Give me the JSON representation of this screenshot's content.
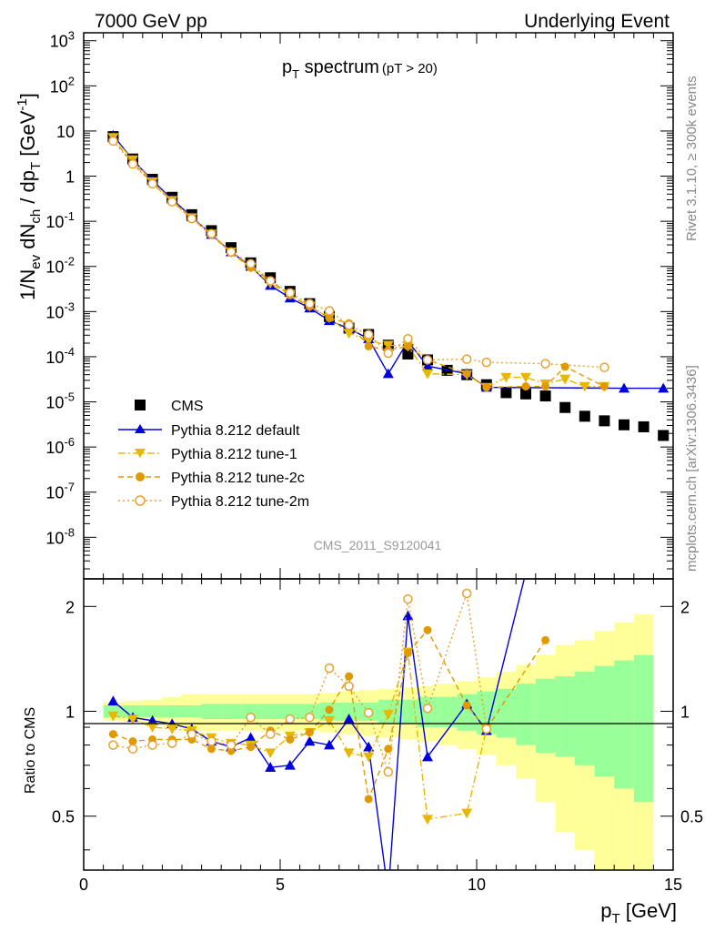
{
  "header": {
    "left": "7000 GeV pp",
    "right": "Underlying Event"
  },
  "side_text": {
    "top": "Rivet 3.1.10, ≥ 300k events",
    "bottom": "mcplots.cern.ch [arXiv:1306.3436]"
  },
  "chart_data": {
    "type": "scatter",
    "title_main": "p",
    "title_sub": "T",
    "title_rest": " spectrum",
    "title_cut": "(pT > 20)",
    "analysis_id": "CMS_2011_S9120041",
    "xlabel_main": "p",
    "xlabel_sub": "T",
    "xlabel_unit": " [GeV]",
    "ylabel": "1/N_ev dN_ch / dp_T [GeV^-1]",
    "ylabel_parts": {
      "a": "1/N",
      "a_sub": "ev",
      "b": " dN",
      "b_sub": "ch",
      "c": " / dp",
      "c_sub": "T",
      "d": " [GeV",
      "d_sup": "-1",
      "e": "]"
    },
    "ratio_ylabel": "Ratio to CMS",
    "x_ticks": [
      "0",
      "5",
      "10",
      "15"
    ],
    "y_ticks": [
      "10^-8",
      "10^-7",
      "10^-6",
      "10^-5",
      "10^-4",
      "10^-3",
      "10^-2",
      "10^-1",
      "1",
      "10",
      "10^2",
      "10^3"
    ],
    "ratio_ticks": [
      "0.5",
      "1",
      "2"
    ],
    "xlim": [
      0,
      15
    ],
    "ylim": [
      1.2e-09,
      1500
    ],
    "ratio_ylim": [
      0.35,
      2.4
    ],
    "log_y": true,
    "legend_position": "lower-left",
    "x": [
      0.75,
      1.25,
      1.75,
      2.25,
      2.75,
      3.25,
      3.75,
      4.25,
      4.75,
      5.25,
      5.75,
      6.25,
      6.75,
      7.25,
      7.75,
      8.25,
      8.75,
      9.25,
      9.75,
      10.25,
      10.75,
      11.25,
      11.75,
      12.25,
      12.75,
      13.25,
      13.75,
      14.25,
      14.75
    ],
    "series": [
      {
        "name": "CMS",
        "color": "#000000",
        "marker": "square",
        "values": [
          7.5,
          2.4,
          0.85,
          0.34,
          0.14,
          0.062,
          0.026,
          0.012,
          0.0056,
          0.0028,
          0.0015,
          0.00078,
          0.00043,
          0.00031,
          0.00018,
          0.000115,
          8.5e-05,
          5e-05,
          4e-05,
          2.4e-05,
          1.6e-05,
          1.5e-05,
          1.35e-05,
          7.5e-06,
          4.8e-06,
          3.8e-06,
          3.1e-06,
          2.8e-06,
          1.8e-06
        ]
      },
      {
        "name": "Pythia 8.212 default",
        "color": "#0000dd",
        "marker": "triangle-up",
        "line": "solid",
        "values": [
          8.0,
          2.3,
          0.8,
          0.31,
          0.125,
          0.051,
          0.021,
          0.01,
          0.0038,
          0.002,
          0.0012,
          0.00063,
          0.00042,
          0.00025,
          4.2e-05,
          0.00022,
          6.2e-05,
          null,
          4.2e-05,
          2.1e-05,
          null,
          null,
          null,
          null,
          null,
          null,
          2e-05,
          null,
          2e-05
        ]
      },
      {
        "name": "Pythia 8.212 tune-1",
        "color": "#e8b800",
        "marker": "triangle-down",
        "line": "dashdot",
        "values": [
          7.2,
          2.3,
          0.75,
          0.29,
          0.12,
          0.052,
          0.021,
          0.0095,
          0.0042,
          0.0024,
          0.0013,
          0.00073,
          0.00033,
          0.00023,
          0.00018,
          0.00017,
          4.2e-05,
          null,
          4e-05,
          2.1e-05,
          3.5e-05,
          3.5e-05,
          2.5e-05,
          3.2e-05,
          2.2e-05,
          2.2e-05,
          null,
          null,
          null
        ]
      },
      {
        "name": "Pythia 8.212 tune-2c",
        "color": "#e09a00",
        "marker": "circle",
        "line": "dashed",
        "values": [
          6.4,
          2.0,
          0.7,
          0.28,
          0.115,
          0.05,
          0.02,
          0.0094,
          0.0049,
          0.0023,
          0.0013,
          0.00072,
          0.00055,
          0.00017,
          0.00014,
          0.00017,
          8.5e-05,
          null,
          4.2e-05,
          2.1e-05,
          null,
          2.2e-05,
          2.2e-05,
          6e-05,
          null,
          2.2e-05,
          null,
          null,
          null
        ]
      },
      {
        "name": "Pythia 8.212 tune-2m",
        "color": "#e8a030",
        "marker": "circle-open",
        "line": "dotted",
        "values": [
          6.0,
          1.85,
          0.68,
          0.27,
          0.115,
          0.053,
          0.021,
          0.0115,
          0.0048,
          0.0026,
          0.0015,
          0.00104,
          0.0005,
          0.00031,
          0.00012,
          0.00025,
          8.5e-05,
          null,
          8.8e-05,
          7.5e-05,
          null,
          null,
          7e-05,
          null,
          null,
          5.8e-05,
          null,
          null,
          null
        ]
      }
    ],
    "ratio": {
      "default": [
        1.07,
        0.96,
        0.94,
        0.92,
        0.89,
        0.82,
        0.79,
        0.84,
        0.69,
        0.7,
        0.82,
        0.8,
        0.95,
        0.79,
        0.3,
        1.88,
        0.74,
        null,
        1.05,
        0.88,
        null,
        2.5
      ],
      "tune1": [
        0.97,
        0.95,
        0.9,
        0.89,
        0.88,
        0.84,
        0.81,
        0.8,
        0.76,
        0.85,
        0.87,
        0.94,
        0.76,
        0.74,
        0.98,
        1.48,
        0.49,
        null,
        0.51,
        0.89
      ],
      "tune2c": [
        0.86,
        0.82,
        0.83,
        0.83,
        0.83,
        0.78,
        0.77,
        0.79,
        0.88,
        0.83,
        0.87,
        1.01,
        1.26,
        0.56,
        0.78,
        1.47,
        1.71,
        null,
        1.04,
        0.89,
        null,
        null,
        1.6
      ],
      "tune2m": [
        0.8,
        0.78,
        0.8,
        0.81,
        0.86,
        0.82,
        0.8,
        0.96,
        0.86,
        0.95,
        0.96,
        1.33,
        1.18,
        0.99,
        0.67,
        2.1,
        1.02,
        null,
        2.18,
        0.89
      ],
      "band_inner": [
        0.04,
        0.04,
        0.04,
        0.04,
        0.04,
        0.05,
        0.05,
        0.05,
        0.05,
        0.05,
        0.05,
        0.06,
        0.06,
        0.06,
        0.08,
        0.08,
        0.1,
        0.1,
        0.12,
        0.14,
        0.16,
        0.2,
        0.24,
        0.26,
        0.3,
        0.35,
        0.4,
        0.45
      ],
      "band_outer": [
        0.06,
        0.07,
        0.08,
        0.1,
        0.12,
        0.12,
        0.12,
        0.12,
        0.12,
        0.12,
        0.12,
        0.13,
        0.14,
        0.15,
        0.16,
        0.17,
        0.18,
        0.2,
        0.22,
        0.25,
        0.3,
        0.36,
        0.45,
        0.55,
        0.6,
        0.7,
        0.8,
        0.9
      ]
    }
  }
}
